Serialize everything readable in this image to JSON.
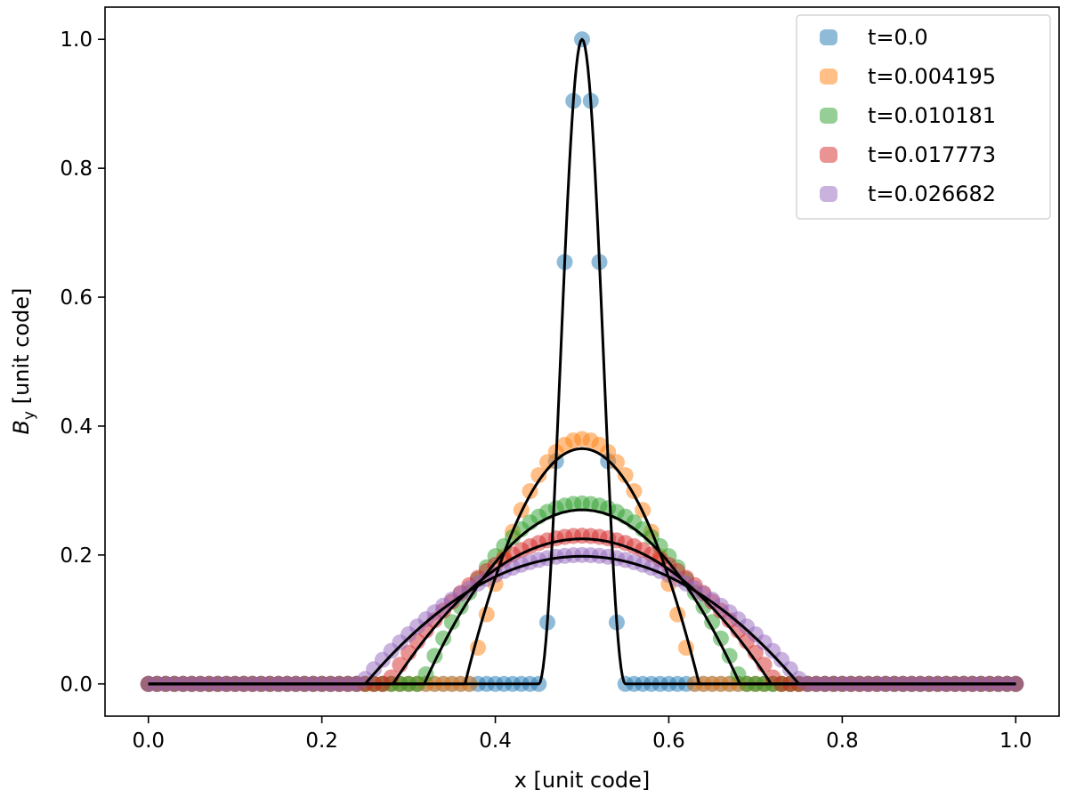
{
  "chart_data": {
    "type": "scatter",
    "xlabel": "x [unit code]",
    "ylabel_main": "B",
    "ylabel_sub": "y",
    "ylabel_rest": " [unit code]",
    "xlim": [
      -0.05,
      1.05
    ],
    "ylim": [
      -0.05,
      1.05
    ],
    "xticks": [
      0.0,
      0.2,
      0.4,
      0.6,
      0.8,
      1.0
    ],
    "yticks": [
      0.0,
      0.2,
      0.4,
      0.6,
      0.8,
      1.0
    ],
    "xtick_labels": [
      "0.0",
      "0.2",
      "0.4",
      "0.6",
      "0.8",
      "1.0"
    ],
    "ytick_labels": [
      "0.0",
      "0.2",
      "0.4",
      "0.6",
      "0.8",
      "1.0"
    ],
    "grid": false,
    "legend_position": "top-right",
    "series": [
      {
        "name": "t=0.0",
        "color": "#1f77b4",
        "peak": 1.0,
        "half_width": 0.05,
        "point_count": 101,
        "shape": "cosine"
      },
      {
        "name": "t=0.004195",
        "color": "#ff7f0e",
        "peak": 0.38,
        "half_width": 0.13,
        "point_count": 101,
        "shape": "parabola"
      },
      {
        "name": "t=0.010181",
        "color": "#2ca02c",
        "peak": 0.28,
        "half_width": 0.185,
        "point_count": 101,
        "shape": "parabola"
      },
      {
        "name": "t=0.017773",
        "color": "#d62728",
        "peak": 0.23,
        "half_width": 0.225,
        "point_count": 101,
        "shape": "parabola"
      },
      {
        "name": "t=0.026682",
        "color": "#9467bd",
        "peak": 0.2,
        "half_width": 0.255,
        "point_count": 101,
        "shape": "parabola"
      }
    ],
    "reference_curves": [
      {
        "peak": 1.0,
        "half_width": 0.05,
        "shape": "cosine",
        "color": "#000000"
      },
      {
        "peak": 0.365,
        "half_width": 0.135,
        "shape": "parabola",
        "color": "#000000"
      },
      {
        "peak": 0.27,
        "half_width": 0.182,
        "shape": "parabola",
        "color": "#000000"
      },
      {
        "peak": 0.225,
        "half_width": 0.218,
        "shape": "parabola",
        "color": "#000000"
      },
      {
        "peak": 0.198,
        "half_width": 0.25,
        "shape": "parabola",
        "color": "#000000"
      }
    ]
  }
}
